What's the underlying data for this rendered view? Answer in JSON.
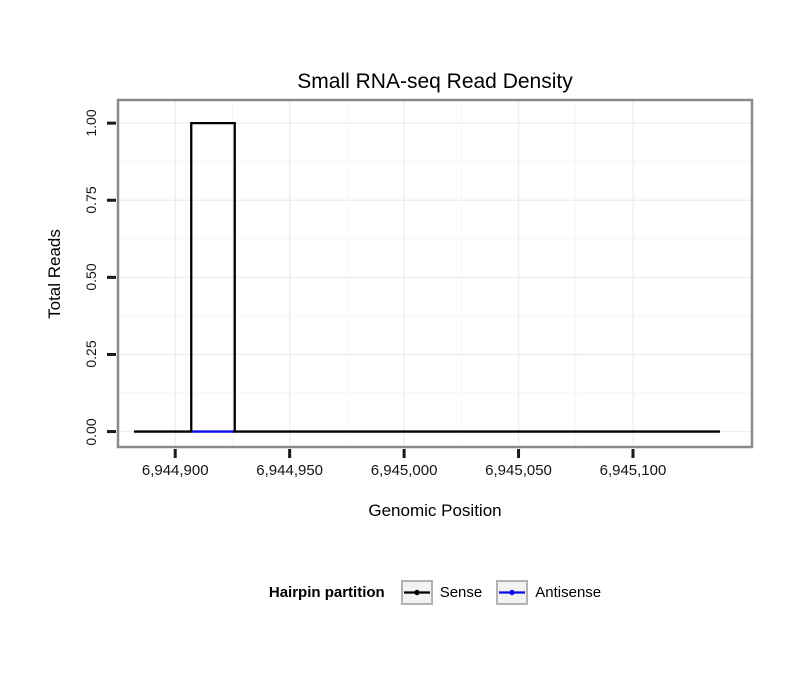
{
  "legend": {
    "title": "Hairpin partition",
    "entries": [
      {
        "label": "Sense",
        "color": "#000000"
      },
      {
        "label": "Antisense",
        "color": "#0a0ae6"
      }
    ]
  },
  "chart_data": {
    "type": "line",
    "title": "Small RNA-seq Read Density",
    "xlabel": "Genomic Position",
    "ylabel": "Total Reads",
    "xlim": [
      6944875,
      6945152
    ],
    "ylim": [
      -0.05,
      1.075
    ],
    "grid": true,
    "legend_position": "bottom",
    "x_ticks": [
      {
        "value": 6944900,
        "label": "6,944,900"
      },
      {
        "value": 6944950,
        "label": "6,944,950"
      },
      {
        "value": 6945000,
        "label": "6,945,000"
      },
      {
        "value": 6945050,
        "label": "6,945,050"
      },
      {
        "value": 6945100,
        "label": "6,945,100"
      }
    ],
    "y_ticks": [
      {
        "value": 0,
        "label": "0.00"
      },
      {
        "value": 0.25,
        "label": "0.25"
      },
      {
        "value": 0.5,
        "label": "0.50"
      },
      {
        "value": 0.75,
        "label": "0.75"
      },
      {
        "value": 1,
        "label": "1.00"
      }
    ],
    "series": [
      {
        "name": "Sense",
        "color": "#000000",
        "style": "step",
        "points": [
          [
            6944882,
            0
          ],
          [
            6944907,
            0
          ],
          [
            6944907,
            1
          ],
          [
            6944926,
            1
          ],
          [
            6944926,
            0
          ],
          [
            6945138,
            0
          ]
        ]
      },
      {
        "name": "Antisense",
        "color": "#0a0ae6",
        "style": "line",
        "points": [
          [
            6944907,
            0
          ],
          [
            6944926,
            0
          ]
        ]
      }
    ]
  }
}
